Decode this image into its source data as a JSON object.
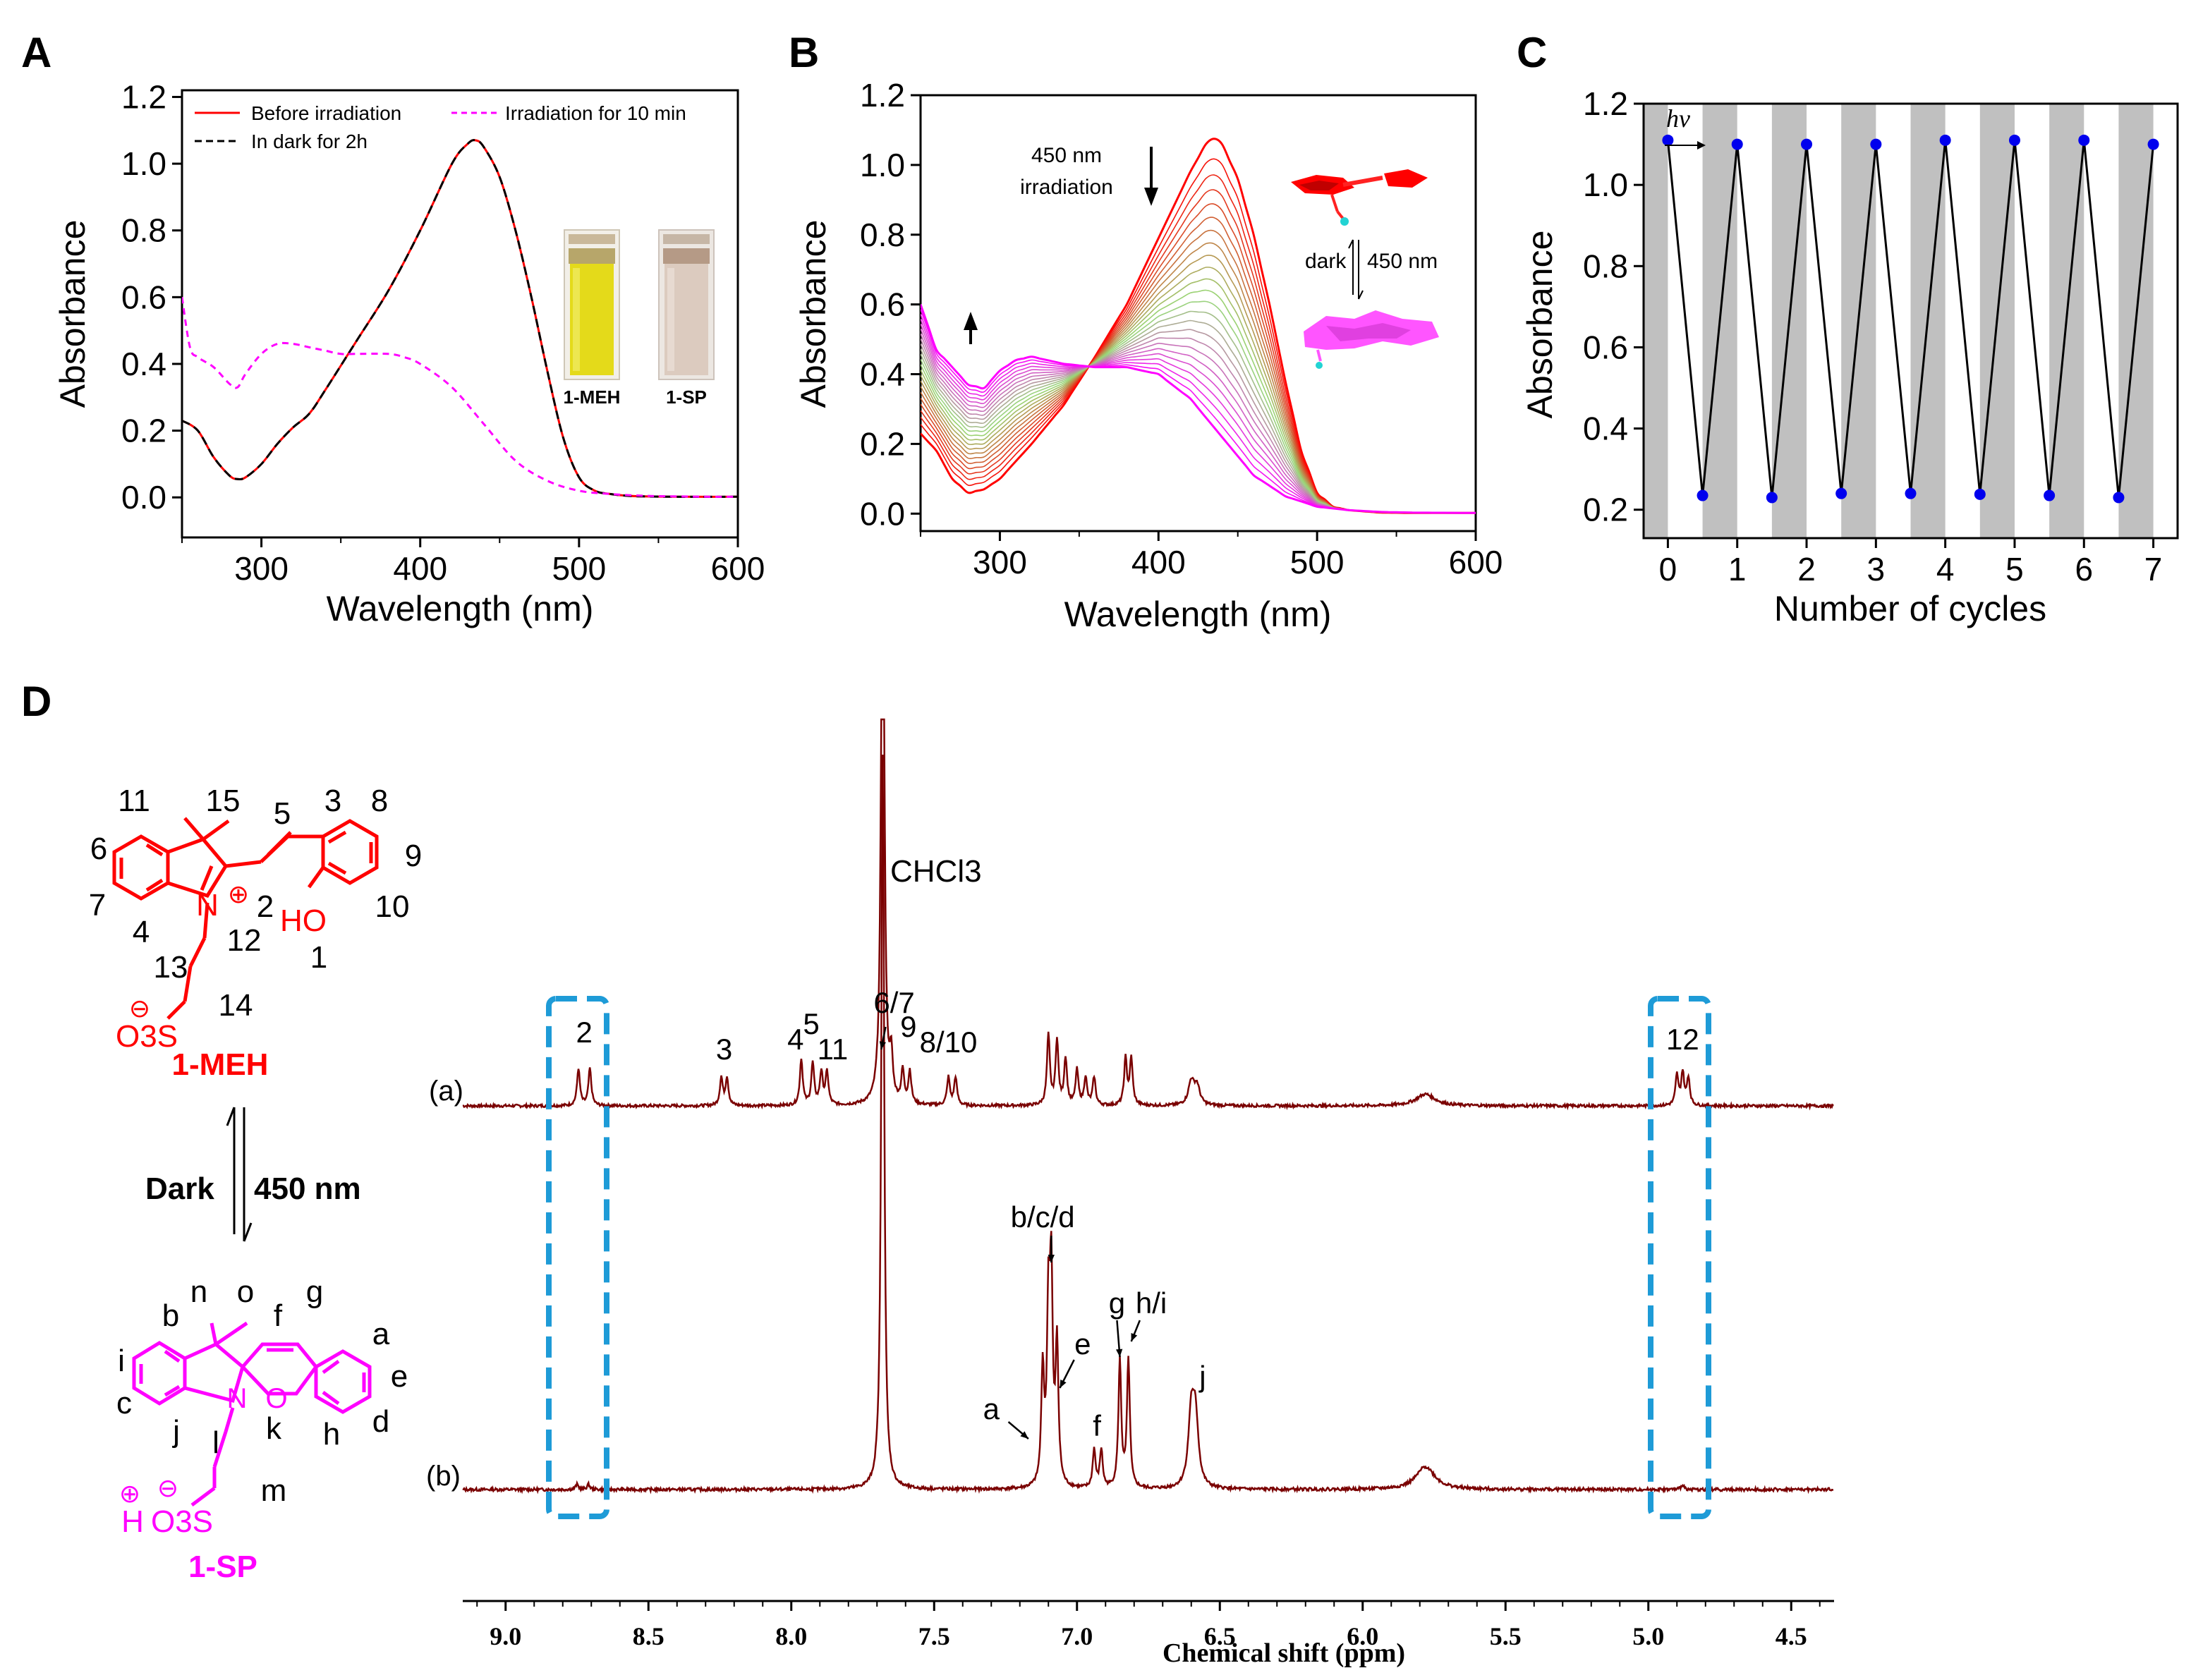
{
  "panels": {
    "A": "A",
    "B": "B",
    "C": "C",
    "D": "D"
  },
  "colors": {
    "red": "#ff0000",
    "magenta": "#ff00ff",
    "nmr": "#7a0000",
    "box": "#1e9bd7",
    "points": "#0000ee",
    "band": "#c0c0c0"
  },
  "chart_data": [
    {
      "id": "A",
      "type": "line",
      "xlabel": "Wavelength (nm)",
      "ylabel": "Absorbance",
      "xlim": [
        250,
        600
      ],
      "ylim": [
        -0.12,
        1.22
      ],
      "xticks": [
        300,
        400,
        500,
        600
      ],
      "yticks": [
        0.0,
        0.2,
        0.4,
        0.6,
        0.8,
        1.0,
        1.2
      ],
      "tick_labels_x": [
        "300",
        "400",
        "500",
        "600"
      ],
      "tick_labels_y": [
        "0.0",
        "0.2",
        "0.4",
        "0.6",
        "0.8",
        "1.0",
        "1.2"
      ],
      "legend": [
        "Before irradiation",
        "In dark for 2h",
        "Irradiation for 10 min"
      ],
      "series": [
        {
          "name": "Before irradiation",
          "style": "solid-red",
          "x": [
            250,
            260,
            270,
            280,
            285,
            290,
            300,
            310,
            320,
            330,
            340,
            360,
            380,
            400,
            420,
            430,
            435,
            440,
            450,
            460,
            470,
            480,
            490,
            500,
            510,
            520,
            530,
            540,
            560,
            600
          ],
          "y": [
            0.23,
            0.2,
            0.12,
            0.065,
            0.055,
            0.06,
            0.1,
            0.16,
            0.21,
            0.25,
            0.32,
            0.47,
            0.62,
            0.8,
            1.0,
            1.06,
            1.07,
            1.05,
            0.96,
            0.8,
            0.6,
            0.38,
            0.18,
            0.06,
            0.02,
            0.01,
            0.005,
            0.003,
            0.002,
            0.002
          ]
        },
        {
          "name": "In dark for 2h",
          "style": "dashed-black",
          "x": [
            250,
            260,
            270,
            280,
            285,
            290,
            300,
            310,
            320,
            330,
            340,
            360,
            380,
            400,
            420,
            430,
            435,
            440,
            450,
            460,
            470,
            480,
            490,
            500,
            510,
            520,
            530,
            540,
            560,
            600
          ],
          "y": [
            0.23,
            0.2,
            0.12,
            0.065,
            0.055,
            0.06,
            0.1,
            0.16,
            0.21,
            0.25,
            0.32,
            0.47,
            0.62,
            0.8,
            1.0,
            1.06,
            1.07,
            1.05,
            0.96,
            0.8,
            0.6,
            0.38,
            0.18,
            0.06,
            0.02,
            0.01,
            0.005,
            0.003,
            0.002,
            0.002
          ]
        },
        {
          "name": "Irradiation for 10 min",
          "style": "dashed-magenta",
          "x": [
            250,
            255,
            260,
            270,
            280,
            285,
            290,
            300,
            310,
            320,
            330,
            340,
            350,
            360,
            380,
            390,
            400,
            420,
            440,
            460,
            480,
            500,
            520,
            540,
            560,
            580,
            600
          ],
          "y": [
            0.6,
            0.45,
            0.42,
            0.39,
            0.34,
            0.33,
            0.37,
            0.43,
            0.46,
            0.46,
            0.45,
            0.44,
            0.43,
            0.43,
            0.43,
            0.42,
            0.4,
            0.33,
            0.22,
            0.11,
            0.05,
            0.02,
            0.01,
            0.005,
            0.003,
            0.002,
            0.002
          ]
        }
      ],
      "inset_labels": [
        "1-MEH",
        "1-SP"
      ]
    },
    {
      "id": "B",
      "type": "line",
      "xlabel": "Wavelength (nm)",
      "ylabel": "Absorbance",
      "xlim": [
        250,
        600
      ],
      "ylim": [
        -0.05,
        1.2
      ],
      "xticks": [
        300,
        400,
        500,
        600
      ],
      "yticks": [
        0.0,
        0.2,
        0.4,
        0.6,
        0.8,
        1.0,
        1.2
      ],
      "tick_labels_x": [
        "300",
        "400",
        "500",
        "600"
      ],
      "tick_labels_y": [
        "0.0",
        "0.2",
        "0.4",
        "0.6",
        "0.8",
        "1.0",
        "1.2"
      ],
      "series_count": 24,
      "start_curve": {
        "name": "1-MEH",
        "x": [
          250,
          260,
          270,
          280,
          290,
          300,
          320,
          340,
          360,
          380,
          400,
          420,
          430,
          435,
          440,
          450,
          460,
          470,
          480,
          490,
          500,
          510,
          520,
          540,
          560,
          600
        ],
        "y": [
          0.23,
          0.18,
          0.1,
          0.06,
          0.07,
          0.1,
          0.2,
          0.31,
          0.45,
          0.6,
          0.79,
          0.98,
          1.06,
          1.075,
          1.06,
          0.96,
          0.8,
          0.6,
          0.38,
          0.18,
          0.06,
          0.02,
          0.01,
          0.003,
          0.002,
          0.002
        ]
      },
      "end_curve": {
        "name": "1-SP",
        "x": [
          250,
          260,
          270,
          280,
          290,
          300,
          310,
          320,
          340,
          360,
          380,
          400,
          420,
          440,
          460,
          480,
          500,
          520,
          540,
          560,
          600
        ],
        "y": [
          0.6,
          0.47,
          0.42,
          0.37,
          0.36,
          0.41,
          0.44,
          0.45,
          0.43,
          0.42,
          0.42,
          0.4,
          0.33,
          0.22,
          0.11,
          0.05,
          0.02,
          0.01,
          0.005,
          0.003,
          0.002
        ]
      },
      "annotations": [
        "450 nm",
        "irradiation",
        "dark",
        "450 nm"
      ]
    },
    {
      "id": "C",
      "type": "line",
      "xlabel": "Number of cycles",
      "ylabel": "Absorbance",
      "xlim": [
        -0.35,
        7.35
      ],
      "ylim": [
        0.13,
        1.2
      ],
      "xticks": [
        0,
        1,
        2,
        3,
        4,
        5,
        6,
        7
      ],
      "yticks": [
        0.2,
        0.4,
        0.6,
        0.8,
        1.0,
        1.2
      ],
      "tick_labels_x": [
        "0",
        "1",
        "2",
        "3",
        "4",
        "5",
        "6",
        "7"
      ],
      "tick_labels_y": [
        "0.2",
        "0.4",
        "0.6",
        "0.8",
        "1.0",
        "1.2"
      ],
      "x": [
        0,
        0.5,
        1,
        1.5,
        2,
        2.5,
        3,
        3.5,
        4,
        4.5,
        5,
        5.5,
        6,
        6.5,
        7
      ],
      "y": [
        1.11,
        0.235,
        1.1,
        0.23,
        1.1,
        0.24,
        1.1,
        0.24,
        1.11,
        0.238,
        1.11,
        0.235,
        1.11,
        0.23,
        1.1
      ],
      "annotation": "hν"
    },
    {
      "id": "D",
      "type": "line",
      "xlabel": "Chemical shift (ppm)",
      "xlim": [
        9.15,
        4.35
      ],
      "xticks": [
        9.0,
        8.5,
        8.0,
        7.5,
        7.0,
        6.5,
        6.0,
        5.5,
        5.0,
        4.5
      ],
      "tick_labels_x": [
        "9.0",
        "8.5",
        "8.0",
        "7.5",
        "7.0",
        "6.5",
        "6.0",
        "5.5",
        "5.0",
        "4.5"
      ],
      "trace_labels": [
        "(a)",
        "(b)"
      ],
      "solvent_label": "CHCl3",
      "spectrum_a": {
        "peaks": [
          [
            8.745,
            0.16
          ],
          [
            8.705,
            0.16
          ],
          [
            8.245,
            0.12
          ],
          [
            8.225,
            0.12
          ],
          [
            7.965,
            0.2
          ],
          [
            7.925,
            0.18
          ],
          [
            7.895,
            0.14
          ],
          [
            7.875,
            0.14
          ],
          [
            7.68,
            3.0
          ],
          [
            7.65,
            0.18
          ],
          [
            7.61,
            0.14
          ],
          [
            7.585,
            0.14
          ],
          [
            7.45,
            0.12
          ],
          [
            7.425,
            0.12
          ],
          [
            7.1,
            0.3
          ],
          [
            7.07,
            0.28
          ],
          [
            7.04,
            0.2
          ],
          [
            7.0,
            0.15
          ],
          [
            6.97,
            0.12
          ],
          [
            6.94,
            0.12
          ],
          [
            6.83,
            0.2
          ],
          [
            6.81,
            0.2
          ],
          [
            6.6,
            0.1
          ],
          [
            6.58,
            0.08
          ],
          [
            5.78,
            0.05
          ],
          [
            4.9,
            0.13
          ],
          [
            4.88,
            0.14
          ],
          [
            4.86,
            0.12
          ]
        ],
        "labels": [
          "2",
          "3",
          "4",
          "5",
          "11",
          "6/7",
          "9",
          "8/10",
          "12"
        ]
      },
      "spectrum_b": {
        "peaks": [
          [
            7.68,
            2.9
          ],
          [
            7.12,
            0.45
          ],
          [
            7.1,
            0.65
          ],
          [
            7.09,
            0.78
          ],
          [
            7.07,
            0.55
          ],
          [
            6.94,
            0.15
          ],
          [
            6.915,
            0.15
          ],
          [
            6.85,
            0.5
          ],
          [
            6.82,
            0.5
          ],
          [
            6.6,
            0.28
          ],
          [
            6.585,
            0.26
          ],
          [
            5.78,
            0.09
          ],
          [
            8.75,
            0.02
          ],
          [
            8.71,
            0.02
          ],
          [
            4.88,
            0.02
          ]
        ],
        "labels": [
          "b/c/d",
          "e",
          "g",
          "h/i",
          "a",
          "f",
          "j"
        ]
      },
      "highlight_regions_ppm": [
        [
          8.82,
          8.63
        ],
        [
          4.97,
          4.78
        ]
      ]
    }
  ],
  "molecules": {
    "meh": {
      "name": "1-MEH",
      "labels": [
        "11",
        "15",
        "5",
        "3",
        "8",
        "6",
        "9",
        "7",
        "2",
        "10",
        "4",
        "12",
        "HO",
        "1",
        "13",
        "14",
        "O3S"
      ],
      "charge_plus": "⊕",
      "charge_minus": "⊖",
      "n_atom": "N"
    },
    "sp": {
      "name": "1-SP",
      "labels": [
        "b",
        "n",
        "o",
        "f",
        "g",
        "a",
        "i",
        "e",
        "c",
        "N",
        "O",
        "j",
        "k",
        "h",
        "d",
        "l",
        "m",
        "H",
        "O3S"
      ],
      "charge_plus": "⊕",
      "charge_minus": "⊖"
    },
    "equilibrium": {
      "left": "Dark",
      "right": "450 nm"
    }
  }
}
